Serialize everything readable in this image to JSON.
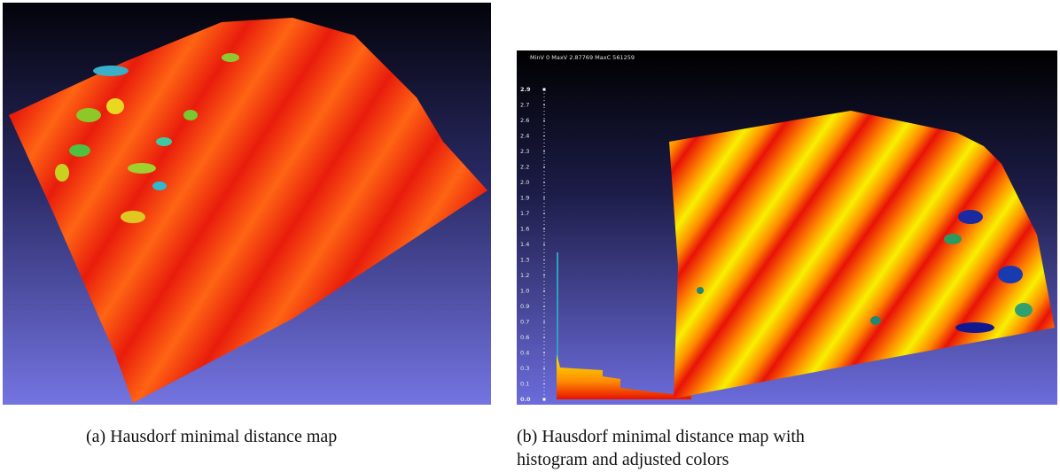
{
  "figure": {
    "panels": [
      {
        "label": "(a)",
        "caption": "Hausdorf minimal distance map"
      },
      {
        "label": "(b)",
        "caption": "Hausdorf minimal distance map with histogram and adjusted colors",
        "overlay": "MinV 0 MaxV 2.87769 MaxC 561259",
        "scale_labels": [
          "2.9",
          "2.7",
          "2.6",
          "2.4",
          "2.3",
          "2.2",
          "2.0",
          "1.9",
          "1.7",
          "1.6",
          "1.4",
          "1.3",
          "1.2",
          "1.0",
          "0.9",
          "0.7",
          "0.6",
          "0.4",
          "0.3",
          "0.1",
          "0.0"
        ]
      }
    ]
  }
}
